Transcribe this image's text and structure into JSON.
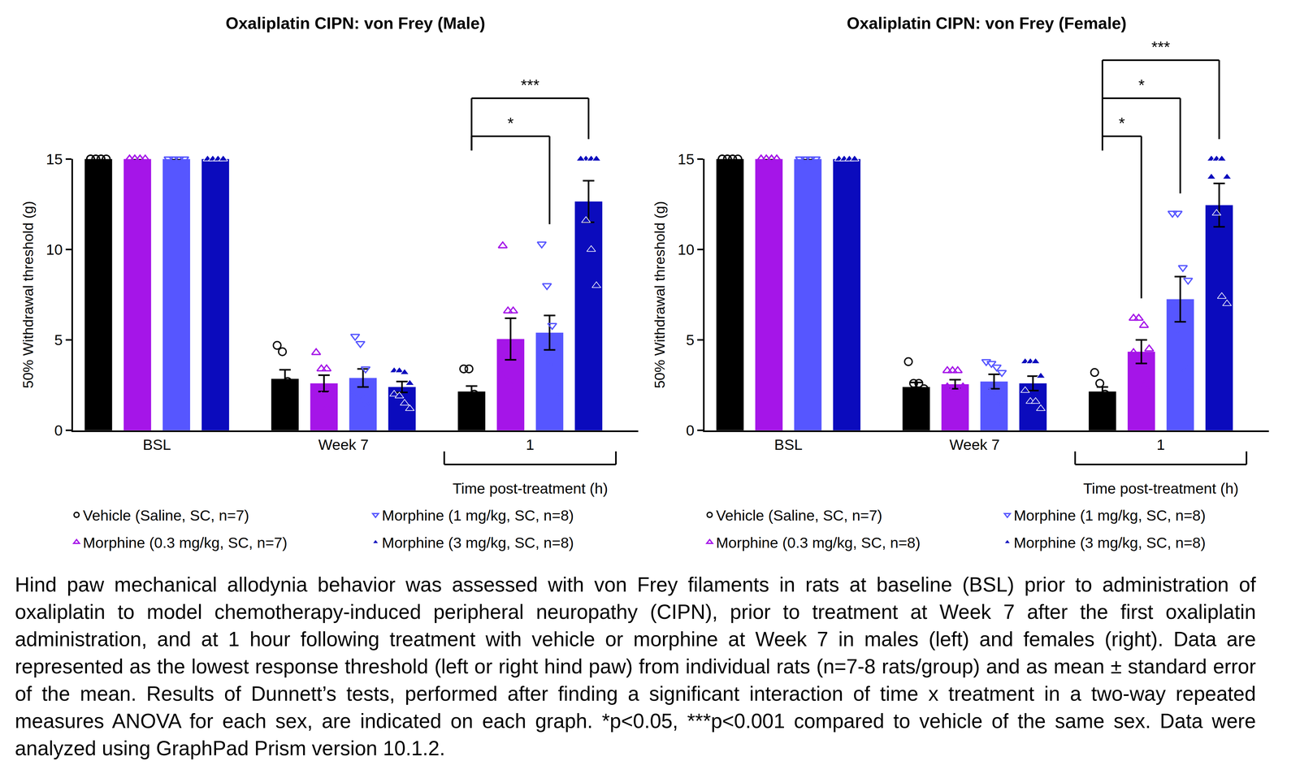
{
  "chart_data": [
    {
      "type": "bar",
      "title": "Oxaliplatin CIPN: von Frey (Male)",
      "y_label": "50% Withdrawal threshold (g)",
      "categories": [
        "BSL",
        "Week 7",
        "1"
      ],
      "ylim": [
        0,
        15
      ],
      "yticks": [
        0,
        5,
        10,
        15
      ],
      "annotations": [
        {
          "text": "Time post-treatment (h)",
          "category": "1"
        }
      ],
      "series": [
        {
          "name": "Vehicle (Saline, SC, n=7)",
          "color": "#000000",
          "marker": "circle-open",
          "values": [
            15,
            2.85,
            2.15
          ],
          "sem": [
            0,
            0.5,
            0.3
          ],
          "points": [
            [
              15,
              15,
              15,
              15,
              15,
              15,
              15
            ],
            [
              4.7,
              4.35,
              2.7,
              2.5,
              1.8,
              1.8,
              1.8
            ],
            [
              3.4,
              3.4,
              2.0,
              1.8,
              1.4,
              1.4,
              1.4
            ]
          ]
        },
        {
          "name": "Morphine (0.3 mg/kg, SC, n=7)",
          "color": "#a515e8",
          "marker": "triangle-up-open",
          "values": [
            15,
            2.6,
            5.05
          ],
          "sem": [
            0,
            0.45,
            1.15
          ],
          "points": [
            [
              15,
              15,
              15,
              15,
              15,
              15,
              15
            ],
            [
              4.3,
              3.4,
              3.4,
              2.1,
              1.9,
              1.9,
              1.2
            ],
            [
              10.2,
              6.6,
              6.6,
              4.2,
              3.0,
              2.6,
              2.1
            ]
          ]
        },
        {
          "name": "Morphine (1 mg/kg, SC, n=8)",
          "color": "#5656ff",
          "marker": "triangle-down-open",
          "values": [
            15,
            2.9,
            5.4
          ],
          "sem": [
            0,
            0.5,
            0.95
          ],
          "points": [
            [
              15,
              15,
              15,
              15,
              15,
              15,
              15,
              15
            ],
            [
              5.2,
              4.8,
              3.4,
              2.7,
              2.1,
              1.9,
              1.5,
              1.5
            ],
            [
              10.3,
              8.0,
              5.8,
              4.8,
              4.2,
              4.2,
              3.8,
              2.1
            ]
          ]
        },
        {
          "name": "Morphine (3 mg/kg, SC, n=8)",
          "color": "#0b0bbd",
          "marker": "triangle-up",
          "values": [
            15,
            2.4,
            12.65
          ],
          "sem": [
            0,
            0.3,
            1.15
          ],
          "points": [
            [
              15,
              15,
              15,
              15,
              15,
              15,
              15,
              15
            ],
            [
              3.3,
              3.3,
              3.2,
              2.6,
              2.0,
              1.9,
              1.5,
              1.2
            ],
            [
              15,
              15,
              15,
              15,
              15,
              11.6,
              10.0,
              8.0
            ]
          ]
        }
      ],
      "significance": [
        {
          "category": "1",
          "from": "Vehicle (Saline, SC, n=7)",
          "to": "Morphine (1 mg/kg, SC, n=8)",
          "label": "*"
        },
        {
          "category": "1",
          "from": "Vehicle (Saline, SC, n=7)",
          "to": "Morphine (3 mg/kg, SC, n=8)",
          "label": "***"
        }
      ]
    },
    {
      "type": "bar",
      "title": "Oxaliplatin CIPN: von Frey (Female)",
      "y_label": "50% Withdrawal threshold (g)",
      "categories": [
        "BSL",
        "Week 7",
        "1"
      ],
      "ylim": [
        0,
        15
      ],
      "yticks": [
        0,
        5,
        10,
        15
      ],
      "annotations": [
        {
          "text": "Time post-treatment (h)",
          "category": "1"
        }
      ],
      "series": [
        {
          "name": "Vehicle (Saline, SC, n=7)",
          "color": "#000000",
          "marker": "circle-open",
          "values": [
            15,
            2.4,
            2.15
          ],
          "sem": [
            0,
            0.25,
            0.25
          ],
          "points": [
            [
              15,
              15,
              15,
              15,
              15,
              15,
              15
            ],
            [
              3.8,
              2.6,
              2.6,
              2.3,
              2.0,
              1.8,
              1.8
            ],
            [
              3.2,
              2.6,
              2.0,
              1.8,
              1.8,
              1.8,
              1.8
            ]
          ]
        },
        {
          "name": "Morphine (0.3 mg/kg, SC, n=8)",
          "color": "#a515e8",
          "marker": "triangle-up-open",
          "values": [
            15,
            2.55,
            4.35
          ],
          "sem": [
            0,
            0.25,
            0.65
          ],
          "points": [
            [
              15,
              15,
              15,
              15,
              15,
              15,
              15,
              15
            ],
            [
              3.3,
              3.3,
              3.3,
              2.4,
              2.4,
              2.0,
              2.0,
              1.8
            ],
            [
              6.2,
              6.2,
              5.8,
              4.5,
              4.3,
              3.2,
              2.5,
              2.2
            ]
          ]
        },
        {
          "name": "Morphine (1 mg/kg, SC, n=8)",
          "color": "#5656ff",
          "marker": "triangle-down-open",
          "values": [
            15,
            2.7,
            7.25
          ],
          "sem": [
            0,
            0.4,
            1.25
          ],
          "points": [
            [
              15,
              15,
              15,
              15,
              15,
              15,
              15,
              15
            ],
            [
              3.8,
              3.7,
              3.5,
              3.2,
              2.2,
              2.0,
              1.5,
              1.5
            ],
            [
              12.0,
              12.0,
              9.0,
              8.3,
              7.0,
              5.5,
              3.5,
              2.4
            ]
          ]
        },
        {
          "name": "Morphine (3 mg/kg, SC, n=8)",
          "color": "#0b0bbd",
          "marker": "triangle-up",
          "values": [
            15,
            2.6,
            12.45
          ],
          "sem": [
            0,
            0.4,
            1.2
          ],
          "points": [
            [
              15,
              15,
              15,
              15,
              15,
              15,
              15,
              15
            ],
            [
              3.8,
              3.8,
              3.8,
              3.0,
              2.2,
              1.6,
              1.6,
              1.2
            ],
            [
              15,
              15,
              15,
              14,
              14,
              12.0,
              7.4,
              7.0
            ]
          ]
        }
      ],
      "significance": [
        {
          "category": "1",
          "from": "Vehicle (Saline, SC, n=7)",
          "to": "Morphine (0.3 mg/kg, SC, n=8)",
          "label": "*"
        },
        {
          "category": "1",
          "from": "Vehicle (Saline, SC, n=7)",
          "to": "Morphine (1 mg/kg, SC, n=8)",
          "label": "*"
        },
        {
          "category": "1",
          "from": "Vehicle (Saline, SC, n=7)",
          "to": "Morphine (3 mg/kg, SC, n=8)",
          "label": "***"
        }
      ]
    }
  ],
  "caption": "Hind paw mechanical allodynia behavior was assessed with von Frey filaments in rats at baseline (BSL) prior to administration of oxaliplatin to model chemotherapy-induced peripheral neuropathy (CIPN), prior to treatment at Week 7 after the first oxaliplatin administration, and at 1 hour following treatment with vehicle or morphine at Week 7 in males (left) and females (right). Data are represented as the lowest response threshold (left or right hind paw) from individual rats (n=7-8 rats/group) and as mean ± standard error of the mean. Results of Dunnett’s tests, performed after finding a significant interaction of time x treatment in a two-way repeated measures ANOVA for each sex, are indicated on each graph. *p<0.05, ***p<0.001 compared to vehicle of the same sex. Data were analyzed using GraphPad Prism version 10.1.2."
}
